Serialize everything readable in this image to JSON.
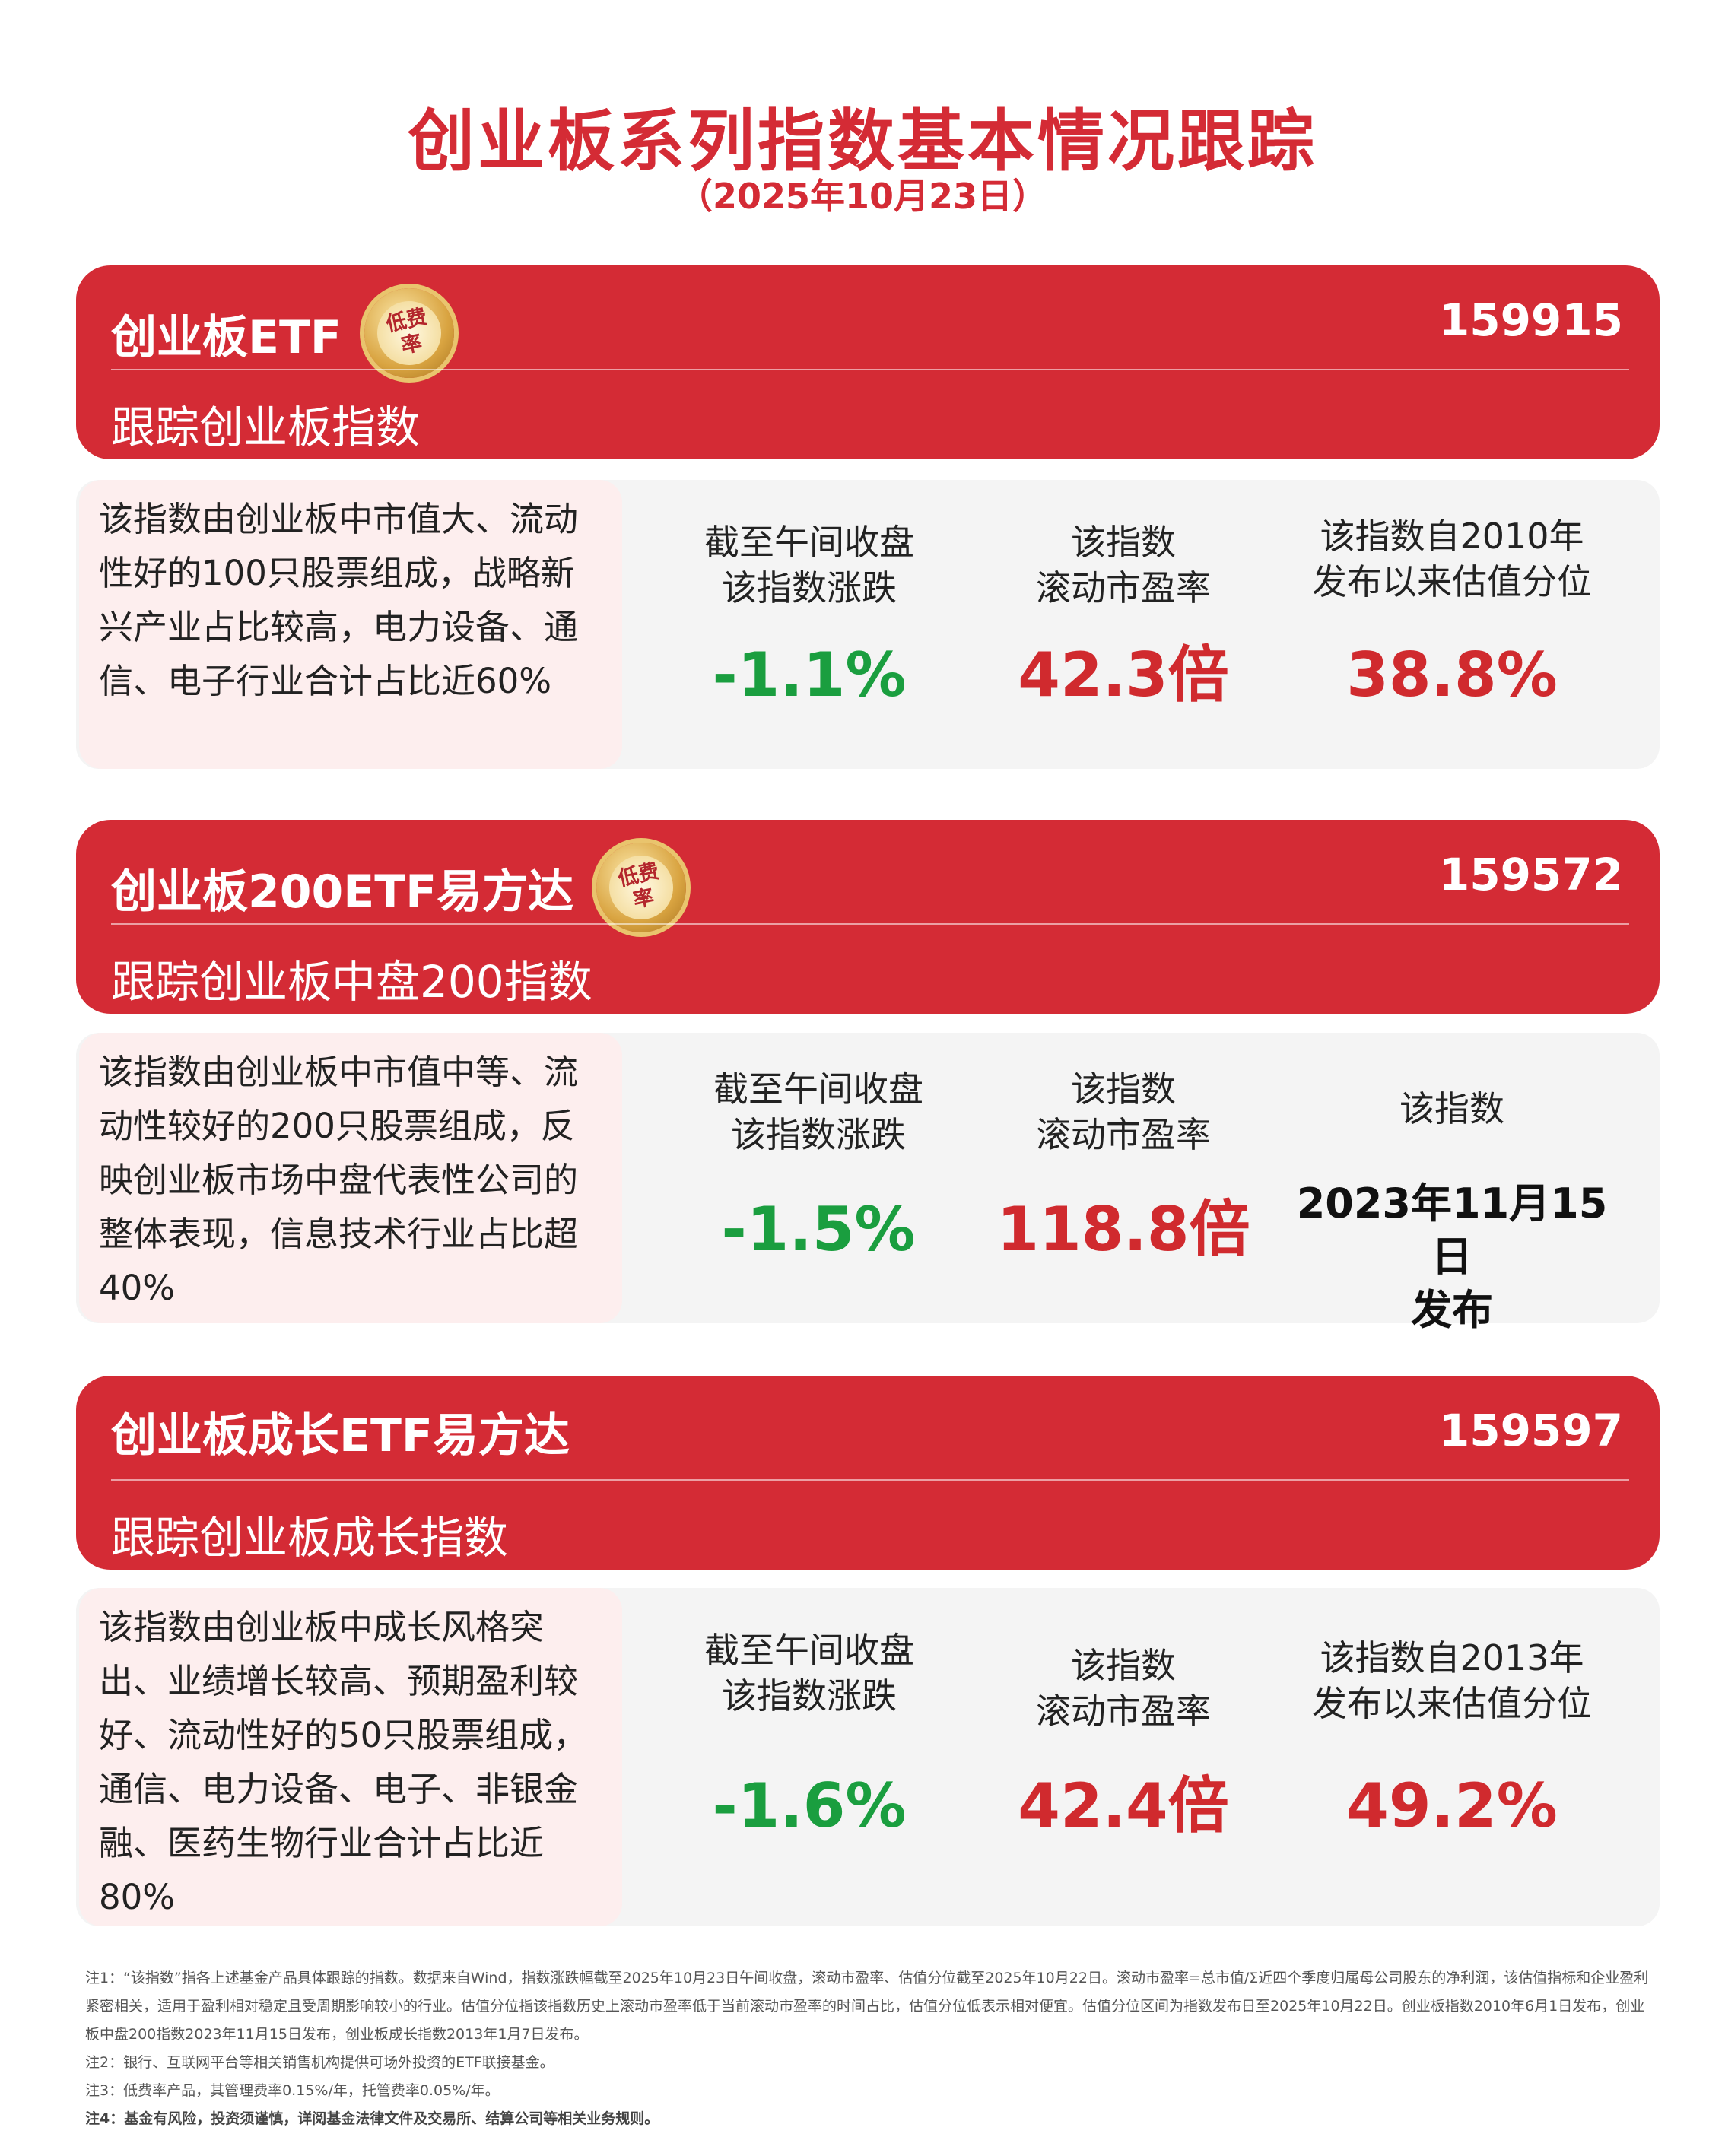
{
  "title": "创业板系列指数基本情况跟踪",
  "subtitle": "（2025年10月23日）",
  "badge": "低费率",
  "colors": {
    "accent": "#d42b35",
    "down": "#1a9e3f",
    "value": "#d02a2e"
  },
  "cards": [
    {
      "name": "创业板ETF",
      "code": "159915",
      "track": "跟踪创业板指数",
      "has_badge": true,
      "desc": "该指数由创业板中市值大、流动性好的100只股票组成，战略新兴产业占比较高，电力设备、通信、电子行业合计占比近60%",
      "cols": [
        {
          "label": "截至午间收盘\n该指数涨跌",
          "value": "-1.1%"
        },
        {
          "label": "该指数\n滚动市盈率",
          "value": "42.3倍"
        },
        {
          "label": "该指数自2010年\n发布以来估值分位",
          "value": "38.8%"
        }
      ]
    },
    {
      "name": "创业板200ETF易方达",
      "code": "159572",
      "track": "跟踪创业板中盘200指数",
      "has_badge": true,
      "desc": "该指数由创业板中市值中等、流动性较好的200只股票组成，反映创业板市场中盘代表性公司的整体表现，信息技术行业占比超40%",
      "cols": [
        {
          "label": "截至午间收盘\n该指数涨跌",
          "value": "-1.5%"
        },
        {
          "label": "该指数\n滚动市盈率",
          "value": "118.8倍"
        },
        {
          "label": "该指数",
          "value": "2023年11月15日\n发布"
        }
      ]
    },
    {
      "name": "创业板成长ETF易方达",
      "code": "159597",
      "track": "跟踪创业板成长指数",
      "has_badge": false,
      "desc": "该指数由创业板中成长风格突出、业绩增长较高、预期盈利较好、流动性好的50只股票组成，通信、电力设备、电子、非银金融、医药生物行业合计占比近80%",
      "cols": [
        {
          "label": "截至午间收盘\n该指数涨跌",
          "value": "-1.6%"
        },
        {
          "label": "该指数\n滚动市盈率",
          "value": "42.4倍"
        },
        {
          "label": "该指数自2013年\n发布以来估值分位",
          "value": "49.2%"
        }
      ]
    }
  ],
  "notes": [
    "注1：“该指数”指各上述基金产品具体跟踪的指数。数据来自Wind，指数涨跌幅截至2025年10月23日午间收盘，滚动市盈率、估值分位截至2025年10月22日。滚动市盈率=总市值/Σ近四个季度归属母公司股东的净利润，该估值指标和企业盈利紧密相关，适用于盈利相对稳定且受周期影响较小的行业。估值分位指该指数历史上滚动市盈率低于当前滚动市盈率的时间占比，估值分位低表示相对便宜。估值分位区间为指数发布日至2025年10月22日。创业板指数2010年6月1日发布，创业板中盘200指数2023年11月15日发布，创业板成长指数2013年1月7日发布。",
    "注2：银行、互联网平台等相关销售机构提供可场外投资的ETF联接基金。",
    "注3：低费率产品，其管理费率0.15%/年，托管费率0.05%/年。",
    "注4：基金有风险，投资须谨慎，详阅基金法律文件及交易所、结算公司等相关业务规则。"
  ]
}
